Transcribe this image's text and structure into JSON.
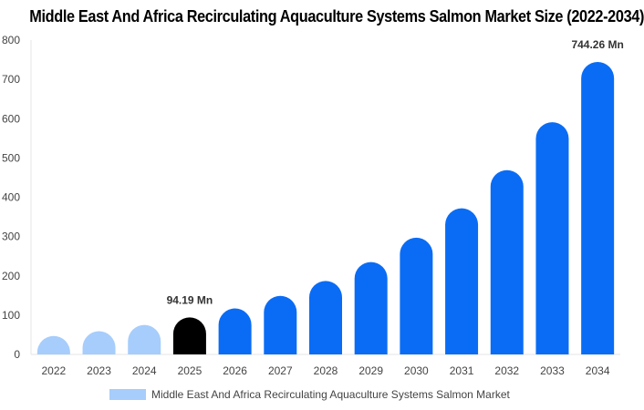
{
  "chart_data": {
    "type": "bar",
    "title": "Middle East And Africa Recirculating Aquaculture Systems Salmon Market Size (2022-2034)",
    "categories": [
      "2022",
      "2023",
      "2024",
      "2025",
      "2026",
      "2027",
      "2028",
      "2029",
      "2030",
      "2031",
      "2032",
      "2033",
      "2034"
    ],
    "series": [
      {
        "name": "Middle East And Africa Recirculating Aquaculture Systems Salmon Market",
        "values": [
          47,
          59,
          75,
          94.19,
          117,
          149,
          187,
          235,
          297,
          372,
          469,
          591,
          744.26
        ]
      }
    ],
    "bar_styles": [
      "historical",
      "historical",
      "historical",
      "base",
      "forecast",
      "forecast",
      "forecast",
      "forecast",
      "forecast",
      "forecast",
      "forecast",
      "forecast",
      "forecast"
    ],
    "colors": {
      "historical": "#a6cdfb",
      "base": "#000000",
      "forecast": "#0a6cf5"
    },
    "data_labels": [
      {
        "category": "2025",
        "text": "94.19 Mn"
      },
      {
        "category": "2034",
        "text": "744.26 Mn"
      }
    ],
    "yticks": [
      0,
      100,
      200,
      300,
      400,
      500,
      600,
      700,
      800
    ],
    "ylim": [
      0,
      800
    ],
    "xlabel": "",
    "ylabel": "",
    "grid": false,
    "legend_position": "bottom-center"
  }
}
